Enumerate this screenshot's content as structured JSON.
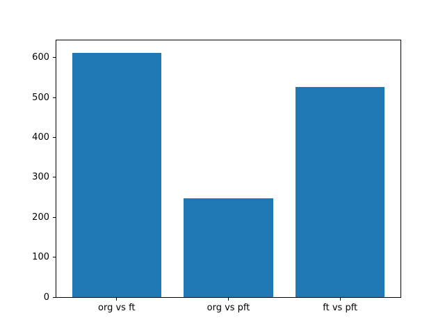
{
  "figure": {
    "background": "#ffffff",
    "plot_background": "#ffffff",
    "spine_color": "#000000",
    "tick_color": "#000000"
  },
  "chart_data": {
    "type": "bar",
    "categories": [
      "org vs ft",
      "org vs pft",
      "ft vs pft"
    ],
    "values": [
      612,
      247,
      527
    ],
    "title": "",
    "xlabel": "",
    "ylabel": "",
    "ylim": [
      0,
      643
    ],
    "xlim": [
      -0.54,
      2.54
    ],
    "yticks": [
      0,
      100,
      200,
      300,
      400,
      500,
      600
    ],
    "bar_color": "#1f77b4",
    "bar_width_fraction": 0.8,
    "grid": false,
    "legend": "none"
  }
}
